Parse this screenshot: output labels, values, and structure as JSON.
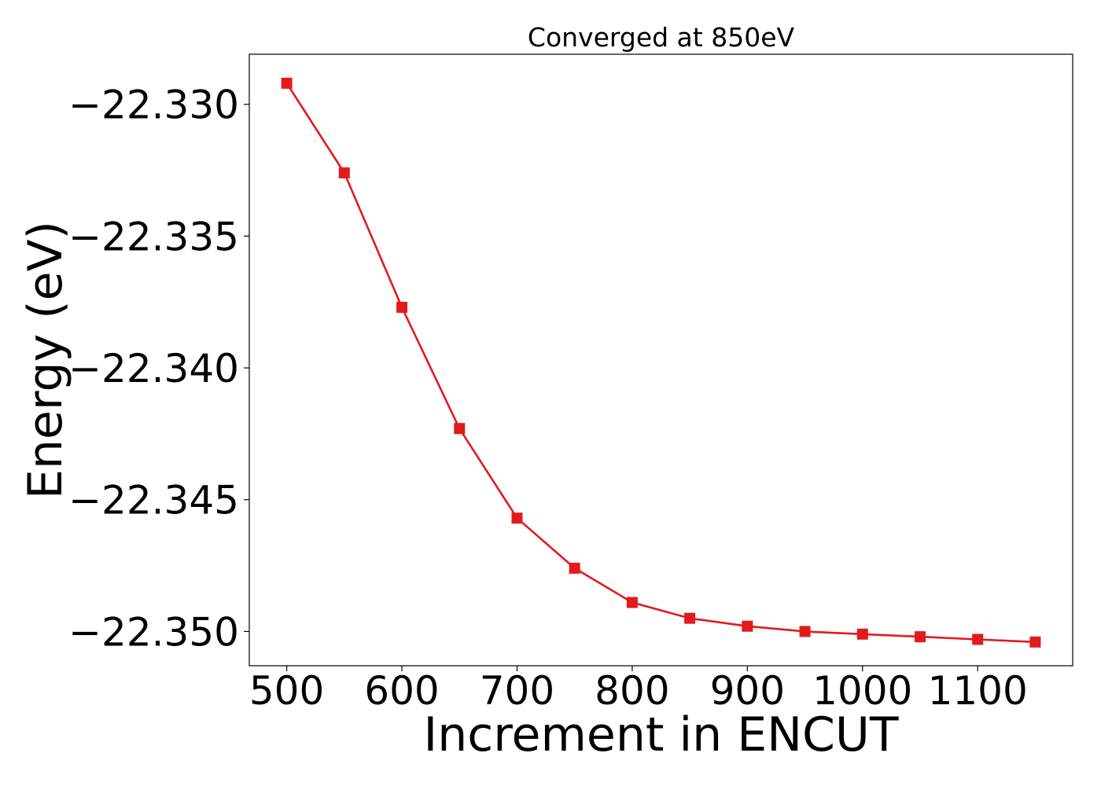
{
  "chart_data": {
    "type": "line",
    "title": "Converged at 850eV",
    "xlabel": "Increment in ENCUT",
    "ylabel": "Energy (eV)",
    "xlim": [
      467.5,
      1182.5
    ],
    "ylim": [
      -22.3513,
      -22.3281
    ],
    "xticks": [
      500,
      600,
      700,
      800,
      900,
      1000,
      1100
    ],
    "xtick_labels": [
      "500",
      "600",
      "700",
      "800",
      "900",
      "1000",
      "1100"
    ],
    "yticks": [
      -22.33,
      -22.335,
      -22.34,
      -22.345,
      -22.35
    ],
    "ytick_labels": [
      "−22.330",
      "−22.335",
      "−22.340",
      "−22.345",
      "−22.350"
    ],
    "grid": false,
    "legend": "none",
    "series": [
      {
        "color": "#e31a1c",
        "marker": "square",
        "x": [
          500,
          550,
          600,
          650,
          700,
          750,
          800,
          850,
          900,
          950,
          1000,
          1050,
          1100,
          1150
        ],
        "y": [
          -22.3292,
          -22.3326,
          -22.3377,
          -22.3423,
          -22.3457,
          -22.3476,
          -22.3489,
          -22.3495,
          -22.3498,
          -22.35,
          -22.3501,
          -22.3502,
          -22.3503,
          -22.3504
        ]
      }
    ]
  }
}
